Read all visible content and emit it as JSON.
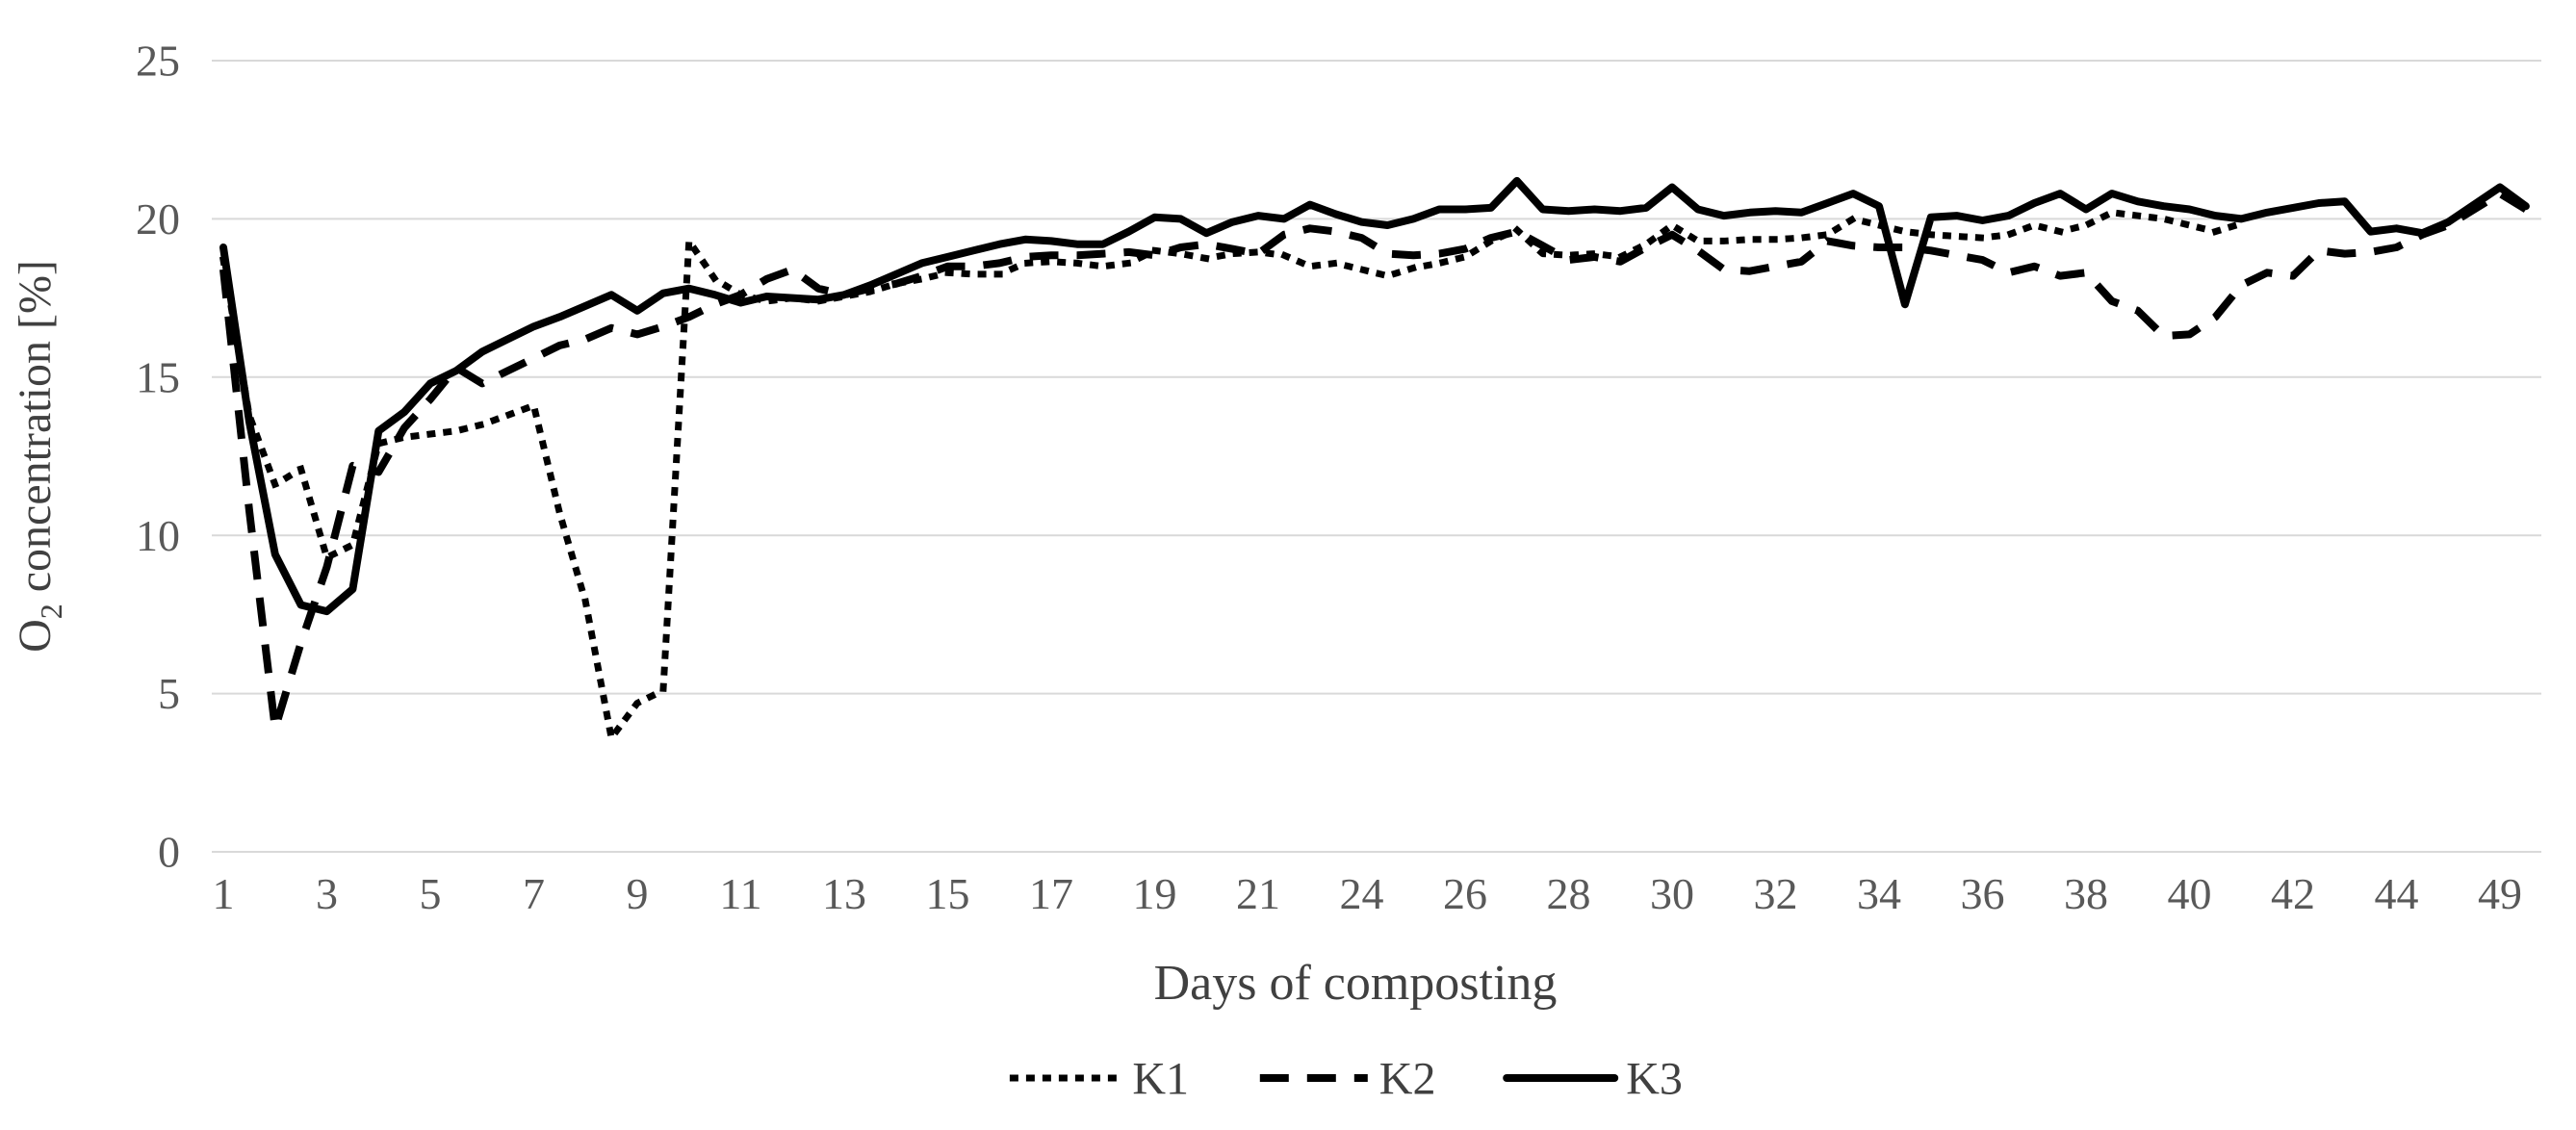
{
  "page": {
    "background": "#ffffff"
  },
  "chart_data": {
    "type": "line",
    "title": "",
    "xlabel": "Days of composting",
    "ylabel": "O2 concentration [%]",
    "ylabel_rich": {
      "pre": "O",
      "sub": "2",
      "post": " concentration [%]"
    },
    "ylim": [
      0,
      25
    ],
    "yticks": [
      0,
      5,
      10,
      15,
      20,
      25
    ],
    "grid": "horizontal-light",
    "legend_position": "bottom-center",
    "colors": {
      "line": "#000000",
      "grid": "#d9d9d9",
      "tick_text": "#595959",
      "title_text": "#404040"
    },
    "x_note": "category axis, one unit = half a day; day 23 and days 45-48 not sampled",
    "x_ticks": [
      {
        "u": 0,
        "label": "1"
      },
      {
        "u": 4,
        "label": "3"
      },
      {
        "u": 8,
        "label": "5"
      },
      {
        "u": 12,
        "label": "7"
      },
      {
        "u": 16,
        "label": "9"
      },
      {
        "u": 20,
        "label": "11"
      },
      {
        "u": 24,
        "label": "13"
      },
      {
        "u": 28,
        "label": "15"
      },
      {
        "u": 32,
        "label": "17"
      },
      {
        "u": 36,
        "label": "19"
      },
      {
        "u": 40,
        "label": "21"
      },
      {
        "u": 44,
        "label": "24"
      },
      {
        "u": 48,
        "label": "26"
      },
      {
        "u": 52,
        "label": "28"
      },
      {
        "u": 56,
        "label": "30"
      },
      {
        "u": 60,
        "label": "32"
      },
      {
        "u": 64,
        "label": "34"
      },
      {
        "u": 68,
        "label": "36"
      },
      {
        "u": 72,
        "label": "38"
      },
      {
        "u": 76,
        "label": "40"
      },
      {
        "u": 80,
        "label": "42"
      },
      {
        "u": 84,
        "label": "44"
      },
      {
        "u": 88,
        "label": "49"
      }
    ],
    "series": [
      {
        "name": "K1",
        "style": "dotted",
        "points": [
          [
            0,
            18.7
          ],
          [
            1,
            13.8
          ],
          [
            2,
            11.6
          ],
          [
            3,
            12.1
          ],
          [
            4,
            9.3
          ],
          [
            5,
            9.7
          ],
          [
            6,
            12.9
          ],
          [
            7,
            13.1
          ],
          [
            8,
            13.2
          ],
          [
            9,
            13.3
          ],
          [
            10,
            13.5
          ],
          [
            11,
            13.8
          ],
          [
            12,
            14.1
          ],
          [
            13,
            10.7
          ],
          [
            14,
            7.9
          ],
          [
            15,
            3.6
          ],
          [
            16,
            4.7
          ],
          [
            17,
            5.1
          ],
          [
            18,
            19.3
          ],
          [
            19,
            18.1
          ],
          [
            20,
            17.6
          ],
          [
            21,
            17.4
          ],
          [
            22,
            17.5
          ],
          [
            23,
            17.4
          ],
          [
            24,
            17.55
          ],
          [
            25,
            17.7
          ],
          [
            26,
            17.95
          ],
          [
            27,
            18.1
          ],
          [
            28,
            18.3
          ],
          [
            29,
            18.25
          ],
          [
            30,
            18.25
          ],
          [
            31,
            18.6
          ],
          [
            32,
            18.65
          ],
          [
            33,
            18.6
          ],
          [
            34,
            18.5
          ],
          [
            35,
            18.6
          ],
          [
            36,
            19.0
          ],
          [
            37,
            18.9
          ],
          [
            38,
            18.75
          ],
          [
            39,
            18.9
          ],
          [
            40,
            18.95
          ],
          [
            41,
            18.85
          ],
          [
            42,
            18.5
          ],
          [
            43,
            18.6
          ],
          [
            44,
            18.4
          ],
          [
            45,
            18.2
          ],
          [
            46,
            18.45
          ],
          [
            47,
            18.6
          ],
          [
            48,
            18.8
          ],
          [
            49,
            19.3
          ],
          [
            50,
            19.65
          ],
          [
            51,
            18.9
          ],
          [
            52,
            18.85
          ],
          [
            53,
            18.9
          ],
          [
            54,
            18.8
          ],
          [
            55,
            19.2
          ],
          [
            56,
            19.8
          ],
          [
            57,
            19.3
          ],
          [
            58,
            19.3
          ],
          [
            59,
            19.35
          ],
          [
            60,
            19.35
          ],
          [
            61,
            19.4
          ],
          [
            62,
            19.5
          ],
          [
            63,
            20.0
          ],
          [
            64,
            19.8
          ],
          [
            65,
            19.6
          ],
          [
            66,
            19.5
          ],
          [
            67,
            19.45
          ],
          [
            68,
            19.4
          ],
          [
            69,
            19.5
          ],
          [
            70,
            19.8
          ],
          [
            71,
            19.6
          ],
          [
            72,
            19.8
          ],
          [
            73,
            20.2
          ],
          [
            74,
            20.1
          ],
          [
            75,
            20.0
          ],
          [
            76,
            19.8
          ],
          [
            77,
            19.6
          ],
          [
            78,
            19.85
          ]
        ]
      },
      {
        "name": "K2",
        "style": "dashed",
        "points": [
          [
            0,
            18.4
          ],
          [
            1,
            10.8
          ],
          [
            2,
            3.9
          ],
          [
            3,
            6.6
          ],
          [
            4,
            9.0
          ],
          [
            5,
            12.2
          ],
          [
            6,
            12.0
          ],
          [
            7,
            13.4
          ],
          [
            8,
            14.3
          ],
          [
            9,
            15.3
          ],
          [
            10,
            14.8
          ],
          [
            11,
            15.2
          ],
          [
            12,
            15.6
          ],
          [
            13,
            16.0
          ],
          [
            14,
            16.2
          ],
          [
            15,
            16.55
          ],
          [
            16,
            16.35
          ],
          [
            17,
            16.6
          ],
          [
            18,
            16.9
          ],
          [
            19,
            17.3
          ],
          [
            20,
            17.6
          ],
          [
            21,
            18.1
          ],
          [
            22,
            18.4
          ],
          [
            23,
            17.8
          ],
          [
            24,
            17.6
          ],
          [
            25,
            17.8
          ],
          [
            26,
            17.95
          ],
          [
            27,
            18.2
          ],
          [
            28,
            18.5
          ],
          [
            29,
            18.5
          ],
          [
            30,
            18.6
          ],
          [
            31,
            18.8
          ],
          [
            32,
            18.85
          ],
          [
            33,
            18.85
          ],
          [
            34,
            18.9
          ],
          [
            35,
            18.95
          ],
          [
            36,
            18.85
          ],
          [
            37,
            19.1
          ],
          [
            38,
            19.2
          ],
          [
            39,
            19.05
          ],
          [
            40,
            18.9
          ],
          [
            41,
            19.5
          ],
          [
            42,
            19.7
          ],
          [
            43,
            19.6
          ],
          [
            44,
            19.4
          ],
          [
            45,
            18.9
          ],
          [
            46,
            18.85
          ],
          [
            47,
            18.9
          ],
          [
            48,
            19.05
          ],
          [
            49,
            19.4
          ],
          [
            50,
            19.6
          ],
          [
            51,
            19.15
          ],
          [
            52,
            18.7
          ],
          [
            53,
            18.8
          ],
          [
            54,
            18.65
          ],
          [
            55,
            19.1
          ],
          [
            56,
            19.5
          ],
          [
            57,
            19.0
          ],
          [
            58,
            18.4
          ],
          [
            59,
            18.35
          ],
          [
            60,
            18.5
          ],
          [
            61,
            18.65
          ],
          [
            62,
            19.3
          ],
          [
            63,
            19.15
          ],
          [
            64,
            19.1
          ],
          [
            65,
            19.1
          ],
          [
            66,
            19.0
          ],
          [
            67,
            18.85
          ],
          [
            68,
            18.7
          ],
          [
            69,
            18.3
          ],
          [
            70,
            18.5
          ],
          [
            71,
            18.2
          ],
          [
            72,
            18.3
          ],
          [
            73,
            17.4
          ],
          [
            74,
            17.1
          ],
          [
            75,
            16.3
          ],
          [
            76,
            16.35
          ],
          [
            77,
            16.9
          ],
          [
            78,
            17.9
          ],
          [
            79,
            18.3
          ],
          [
            80,
            18.2
          ],
          [
            81,
            19.0
          ],
          [
            82,
            18.9
          ],
          [
            83,
            18.95
          ],
          [
            84,
            19.1
          ],
          [
            85,
            19.5
          ],
          [
            86,
            19.8
          ],
          [
            88,
            20.8
          ],
          [
            89,
            20.3
          ]
        ]
      },
      {
        "name": "K3",
        "style": "solid",
        "points": [
          [
            0,
            19.1
          ],
          [
            1,
            13.6
          ],
          [
            2,
            9.4
          ],
          [
            3,
            7.8
          ],
          [
            4,
            7.6
          ],
          [
            5,
            8.3
          ],
          [
            6,
            13.3
          ],
          [
            7,
            13.9
          ],
          [
            8,
            14.8
          ],
          [
            9,
            15.2
          ],
          [
            10,
            15.8
          ],
          [
            11,
            16.2
          ],
          [
            12,
            16.6
          ],
          [
            13,
            16.9
          ],
          [
            14,
            17.25
          ],
          [
            15,
            17.6
          ],
          [
            16,
            17.1
          ],
          [
            17,
            17.65
          ],
          [
            18,
            17.8
          ],
          [
            19,
            17.6
          ],
          [
            20,
            17.35
          ],
          [
            21,
            17.55
          ],
          [
            22,
            17.5
          ],
          [
            23,
            17.45
          ],
          [
            24,
            17.6
          ],
          [
            25,
            17.9
          ],
          [
            26,
            18.25
          ],
          [
            27,
            18.6
          ],
          [
            28,
            18.8
          ],
          [
            29,
            19.0
          ],
          [
            30,
            19.2
          ],
          [
            31,
            19.35
          ],
          [
            32,
            19.3
          ],
          [
            33,
            19.2
          ],
          [
            34,
            19.2
          ],
          [
            35,
            19.6
          ],
          [
            36,
            20.05
          ],
          [
            37,
            20.0
          ],
          [
            38,
            19.55
          ],
          [
            39,
            19.9
          ],
          [
            40,
            20.1
          ],
          [
            41,
            20.0
          ],
          [
            42,
            20.45
          ],
          [
            43,
            20.15
          ],
          [
            44,
            19.9
          ],
          [
            45,
            19.8
          ],
          [
            46,
            20.0
          ],
          [
            47,
            20.3
          ],
          [
            48,
            20.3
          ],
          [
            49,
            20.35
          ],
          [
            50,
            21.2
          ],
          [
            51,
            20.3
          ],
          [
            52,
            20.25
          ],
          [
            53,
            20.3
          ],
          [
            54,
            20.25
          ],
          [
            55,
            20.35
          ],
          [
            56,
            21.0
          ],
          [
            57,
            20.3
          ],
          [
            58,
            20.1
          ],
          [
            59,
            20.2
          ],
          [
            60,
            20.25
          ],
          [
            61,
            20.2
          ],
          [
            62,
            20.5
          ],
          [
            63,
            20.8
          ],
          [
            64,
            20.4
          ],
          [
            65,
            17.3
          ],
          [
            66,
            20.05
          ],
          [
            67,
            20.1
          ],
          [
            68,
            19.95
          ],
          [
            69,
            20.1
          ],
          [
            70,
            20.5
          ],
          [
            71,
            20.8
          ],
          [
            72,
            20.3
          ],
          [
            73,
            20.8
          ],
          [
            74,
            20.55
          ],
          [
            75,
            20.4
          ],
          [
            76,
            20.3
          ],
          [
            77,
            20.1
          ],
          [
            78,
            20.0
          ],
          [
            79,
            20.2
          ],
          [
            80,
            20.35
          ],
          [
            81,
            20.5
          ],
          [
            82,
            20.55
          ],
          [
            83,
            19.6
          ],
          [
            84,
            19.7
          ],
          [
            85,
            19.55
          ],
          [
            86,
            19.9
          ],
          [
            88,
            21.0
          ],
          [
            89,
            20.4
          ]
        ]
      }
    ]
  }
}
